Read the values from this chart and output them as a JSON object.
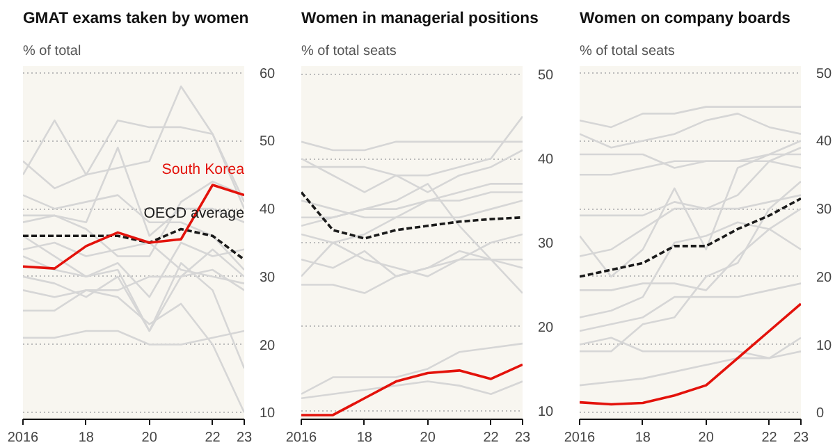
{
  "chart_data": [
    {
      "type": "line",
      "title": "GMAT exams taken by women",
      "subtitle": "% of total",
      "x": [
        2016,
        2017,
        2018,
        2019,
        2020,
        2021,
        2022,
        2023
      ],
      "xlim": [
        2016,
        2023
      ],
      "xticks": [
        {
          "value": 2016,
          "label": "2016"
        },
        {
          "value": 2018,
          "label": "18"
        },
        {
          "value": 2020,
          "label": "20"
        },
        {
          "value": 2022,
          "label": "22"
        },
        {
          "value": 2023,
          "label": "23"
        }
      ],
      "ylim": [
        9,
        61
      ],
      "yticks": [
        10,
        20,
        30,
        40,
        50,
        60
      ],
      "grid": "y",
      "marker": "none",
      "series": [
        {
          "color": "#d6d6d6",
          "values": [
            45,
            53,
            45,
            46,
            47,
            58,
            51,
            40
          ]
        },
        {
          "color": "#d6d6d6",
          "values": [
            47,
            43,
            45,
            53,
            52,
            52,
            51,
            41
          ]
        },
        {
          "color": "#d6d6d6",
          "values": [
            39,
            39,
            38,
            49,
            36,
            40,
            40,
            38
          ]
        },
        {
          "color": "#d6d6d6",
          "values": [
            36,
            33,
            30,
            32,
            27,
            35,
            33,
            34
          ]
        },
        {
          "color": "#d6d6d6",
          "values": [
            30,
            29,
            27,
            30,
            22,
            30,
            34,
            30
          ]
        },
        {
          "color": "#d6d6d6",
          "values": [
            21,
            21,
            22,
            22,
            20,
            20,
            21,
            22
          ]
        },
        {
          "color": "#d6d6d6",
          "values": [
            33,
            31,
            30,
            31,
            22,
            32,
            28,
            16.5
          ]
        },
        {
          "color": "#d6d6d6",
          "values": [
            28,
            27,
            28,
            27,
            23,
            26,
            20,
            10
          ]
        },
        {
          "color": "#d6d6d6",
          "values": [
            42,
            40,
            41,
            42,
            38,
            38,
            36,
            31
          ]
        },
        {
          "color": "#d6d6d6",
          "values": [
            25,
            25,
            28,
            28,
            30,
            30,
            31,
            28
          ]
        },
        {
          "color": "#d6d6d6",
          "values": [
            38,
            39,
            37,
            33,
            33,
            41,
            44,
            42
          ]
        },
        {
          "color": "#d6d6d6",
          "values": [
            34,
            35,
            33,
            34,
            35,
            31,
            30,
            29
          ]
        },
        {
          "name": "OECD average",
          "color": "#1a1a1a",
          "line_style": "dashed",
          "values": [
            36,
            36,
            36,
            36,
            35,
            37,
            36,
            32.5
          ]
        },
        {
          "name": "South Korea",
          "color": "#e3120b",
          "values": [
            31.5,
            31.2,
            34.5,
            36.5,
            35,
            35.5,
            43.5,
            42
          ]
        }
      ]
    },
    {
      "type": "line",
      "title": "Women in managerial positions",
      "subtitle": "% of total seats",
      "x": [
        2016,
        2017,
        2018,
        2019,
        2020,
        2021,
        2022,
        2023
      ],
      "xlim": [
        2016,
        2023
      ],
      "xticks": [
        {
          "value": 2016,
          "label": "2016"
        },
        {
          "value": 2018,
          "label": "18"
        },
        {
          "value": 2020,
          "label": "20"
        },
        {
          "value": 2022,
          "label": "22"
        },
        {
          "value": 2023,
          "label": "23"
        }
      ],
      "ylim": [
        9,
        51
      ],
      "yticks": [
        10,
        20,
        30,
        40,
        50
      ],
      "grid": "y",
      "marker": "none",
      "series": [
        {
          "color": "#d6d6d6",
          "values": [
            42,
            41,
            41,
            42,
            42,
            42,
            42,
            42
          ]
        },
        {
          "color": "#d6d6d6",
          "values": [
            39,
            39,
            39,
            38,
            38,
            39,
            40,
            45
          ]
        },
        {
          "color": "#d6d6d6",
          "values": [
            40,
            38,
            36,
            38,
            36,
            38,
            39,
            41
          ]
        },
        {
          "color": "#d6d6d6",
          "values": [
            35,
            34,
            33,
            33,
            35,
            36,
            37,
            37
          ]
        },
        {
          "color": "#d6d6d6",
          "values": [
            33,
            33,
            34,
            34,
            35,
            35,
            36,
            36
          ]
        },
        {
          "color": "#d6d6d6",
          "values": [
            32,
            33,
            34,
            35,
            37,
            32,
            28,
            24
          ]
        },
        {
          "color": "#d6d6d6",
          "values": [
            31,
            30,
            31,
            33,
            33,
            33,
            34,
            35
          ]
        },
        {
          "color": "#d6d6d6",
          "values": [
            28,
            27,
            29,
            26,
            27,
            29,
            28,
            28
          ]
        },
        {
          "color": "#d6d6d6",
          "values": [
            25,
            25,
            24,
            26,
            27,
            28,
            28,
            27
          ]
        },
        {
          "color": "#d6d6d6",
          "values": [
            26,
            30,
            28,
            27,
            26,
            28,
            30,
            31
          ]
        },
        {
          "color": "#d6d6d6",
          "values": [
            12,
            14,
            14,
            14,
            15,
            17,
            17.5,
            18
          ]
        },
        {
          "color": "#d6d6d6",
          "values": [
            11.5,
            12,
            12.5,
            13,
            13.5,
            13,
            12,
            13.5
          ]
        },
        {
          "color": "#1a1a1a",
          "line_style": "dashed",
          "values": [
            36,
            31.5,
            30.5,
            31.5,
            32,
            32.5,
            32.8,
            33
          ]
        },
        {
          "color": "#e3120b",
          "values": [
            9.5,
            9.5,
            11.5,
            13.5,
            14.5,
            14.8,
            13.8,
            15.5
          ]
        }
      ]
    },
    {
      "type": "line",
      "title": "Women on company boards",
      "subtitle": "% of total seats",
      "x": [
        2016,
        2017,
        2018,
        2019,
        2020,
        2021,
        2022,
        2023
      ],
      "xlim": [
        2016,
        2023
      ],
      "xticks": [
        {
          "value": 2016,
          "label": "2016"
        },
        {
          "value": 2018,
          "label": "18"
        },
        {
          "value": 2020,
          "label": "20"
        },
        {
          "value": 2022,
          "label": "22"
        },
        {
          "value": 2023,
          "label": "23"
        }
      ],
      "ylim": [
        -1,
        51
      ],
      "yticks": [
        0,
        10,
        20,
        30,
        40,
        50
      ],
      "grid": "y",
      "marker": "none",
      "series": [
        {
          "color": "#d6d6d6",
          "values": [
            43,
            42,
            44,
            44,
            45,
            45,
            45,
            45
          ]
        },
        {
          "color": "#d6d6d6",
          "values": [
            41,
            39,
            40,
            41,
            43,
            44,
            42,
            41
          ]
        },
        {
          "color": "#d6d6d6",
          "values": [
            38,
            38,
            38,
            36,
            37,
            37,
            38,
            40
          ]
        },
        {
          "color": "#d6d6d6",
          "values": [
            35,
            35,
            36,
            37,
            37,
            37,
            37,
            36
          ]
        },
        {
          "color": "#d6d6d6",
          "values": [
            29,
            29,
            29,
            31,
            30,
            32,
            37,
            39
          ]
        },
        {
          "color": "#d6d6d6",
          "values": [
            26,
            20,
            24,
            33,
            24,
            36,
            38,
            38
          ]
        },
        {
          "color": "#d6d6d6",
          "values": [
            23,
            24,
            27,
            30,
            30,
            30,
            31,
            32
          ]
        },
        {
          "color": "#d6d6d6",
          "values": [
            14,
            15,
            17,
            25,
            26,
            28,
            27,
            24
          ]
        },
        {
          "color": "#d6d6d6",
          "values": [
            12,
            13,
            14,
            17,
            17,
            17,
            18,
            19
          ]
        },
        {
          "color": "#d6d6d6",
          "values": [
            9,
            9,
            13,
            14,
            20,
            22,
            30,
            34
          ]
        },
        {
          "color": "#d6d6d6",
          "values": [
            10,
            11,
            9,
            9,
            9,
            9,
            8,
            11
          ]
        },
        {
          "color": "#d6d6d6",
          "values": [
            4,
            4.5,
            5,
            6,
            7,
            8,
            8,
            9
          ]
        },
        {
          "color": "#d6d6d6",
          "values": [
            18,
            18,
            19,
            19,
            18,
            23,
            27,
            30
          ]
        },
        {
          "color": "#1a1a1a",
          "line_style": "dashed",
          "values": [
            20,
            21,
            22,
            24.5,
            24.5,
            27,
            29,
            31.5
          ]
        },
        {
          "color": "#e3120b",
          "values": [
            1.5,
            1.2,
            1.4,
            2.5,
            4,
            8,
            12,
            16
          ]
        }
      ]
    }
  ]
}
